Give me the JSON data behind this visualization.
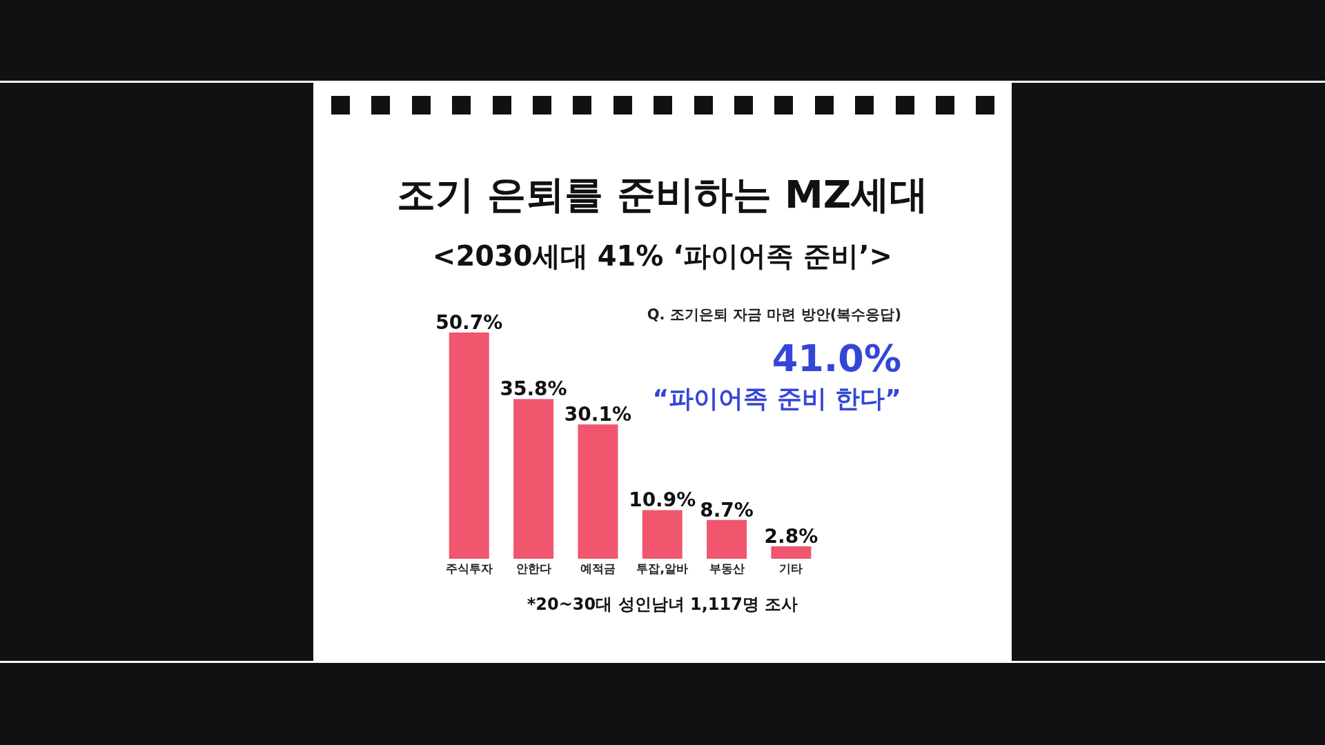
{
  "chart_data": {
    "type": "bar",
    "title": "조기 은퇴를 준비하는 MZ세대",
    "subtitle": "<2030세대 41% ‘파이어족 준비’>",
    "categories": [
      "주식투자",
      "안한다",
      "예적금",
      "투잡,알바",
      "부동산",
      "기타"
    ],
    "values": [
      50.7,
      35.8,
      30.1,
      10.9,
      8.7,
      2.8
    ],
    "color": "#f0566e",
    "value_labels": [
      "50.7%",
      "35.8%",
      "30.1%",
      "10.9%",
      "8.7%",
      "2.8%"
    ],
    "annotations": [
      "Q. 조기은퇴 자금 마련 방안(복수응답)",
      "41.0%",
      "“파이어족 준비 한다”",
      "*20~30대 성인남녀 1,117명 조사"
    ]
  }
}
